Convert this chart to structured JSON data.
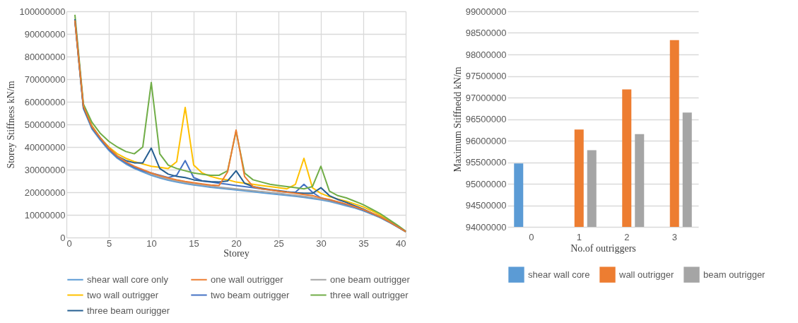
{
  "chart_data": [
    {
      "type": "line",
      "xlabel": "Storey",
      "ylabel": "Storey Stiffness kN/m",
      "x": [
        1,
        2,
        3,
        4,
        5,
        6,
        7,
        8,
        9,
        10,
        11,
        12,
        13,
        14,
        15,
        16,
        17,
        18,
        19,
        20,
        21,
        22,
        23,
        24,
        25,
        26,
        27,
        28,
        29,
        30,
        31,
        32,
        33,
        34,
        35,
        36,
        37,
        38,
        39,
        40
      ],
      "xlim": [
        0,
        40
      ],
      "xticks": [
        0,
        5,
        10,
        15,
        20,
        25,
        30,
        35,
        40
      ],
      "ylim": [
        0,
        100000000
      ],
      "yticks": [
        0,
        10000000,
        20000000,
        30000000,
        40000000,
        50000000,
        60000000,
        70000000,
        80000000,
        90000000,
        100000000
      ],
      "grid": true,
      "legend": "bottom",
      "series": [
        {
          "name": "shear wall core only",
          "color": "#5b9bd5",
          "values": [
            95500000,
            57000000,
            48000000,
            43000000,
            38500000,
            35000000,
            32500000,
            30500000,
            29000000,
            27500000,
            26300000,
            25300000,
            24500000,
            23800000,
            23200000,
            22700000,
            22200000,
            21800000,
            21400000,
            21000000,
            20600000,
            20200000,
            19800000,
            19400000,
            19000000,
            18600000,
            18200000,
            17700000,
            17200000,
            16600000,
            15900000,
            15000000,
            14000000,
            13000000,
            11800000,
            10300000,
            8700000,
            6800000,
            4700000,
            2500000
          ]
        },
        {
          "name": "one wall outrigger",
          "color": "#ed7d31",
          "values": [
            96000000,
            58000000,
            49000000,
            44000000,
            39500000,
            36000000,
            33500000,
            31500000,
            30000000,
            28500000,
            27300000,
            26300000,
            25500000,
            24800000,
            24200000,
            23700000,
            23200000,
            23000000,
            29000000,
            47500000,
            27000000,
            22500000,
            21500000,
            21000000,
            20500000,
            20000000,
            19500000,
            19000000,
            18500000,
            17500000,
            16800000,
            15800000,
            14800000,
            13600000,
            12300000,
            10800000,
            9100000,
            7100000,
            4900000,
            2600000
          ]
        },
        {
          "name": "one beam outrigger",
          "color": "#a5a5a5",
          "values": [
            96000000,
            57500000,
            48500000,
            43500000,
            39000000,
            35500000,
            33000000,
            31000000,
            29500000,
            28000000,
            26800000,
            25800000,
            25000000,
            24300000,
            23700000,
            23200000,
            22700000,
            22300000,
            21900000,
            21500000,
            21100000,
            20700000,
            20300000,
            19900000,
            19500000,
            19100000,
            18700000,
            18200000,
            17700000,
            17000000,
            16300000,
            15400000,
            14400000,
            13300000,
            12000000,
            10500000,
            8900000,
            7000000,
            4800000,
            2600000
          ]
        },
        {
          "name": "two wall outrigger",
          "color": "#ffc000",
          "values": [
            96000000,
            58500000,
            49500000,
            44000000,
            40000000,
            37000000,
            35000000,
            33500000,
            32500000,
            31500000,
            31000000,
            30500000,
            33500000,
            57500000,
            32000000,
            28500000,
            27000000,
            26000000,
            25500000,
            24500000,
            24000000,
            23500000,
            23000000,
            22500000,
            22000000,
            21500000,
            23500000,
            35000000,
            22000000,
            19500000,
            18000000,
            17000000,
            16000000,
            14800000,
            13500000,
            11800000,
            9800000,
            7500000,
            5000000,
            2500000
          ]
        },
        {
          "name": "two beam outrigger",
          "color": "#4472c4",
          "values": [
            96000000,
            57500000,
            48500000,
            43500000,
            39000000,
            35500000,
            33000000,
            31000000,
            29500000,
            28500000,
            27500000,
            26500000,
            27500000,
            34000000,
            26500000,
            25000000,
            24500000,
            24000000,
            23500000,
            23000000,
            22500000,
            22000000,
            21500000,
            21000000,
            20500000,
            20000000,
            20000000,
            23500000,
            20000000,
            17500000,
            16600000,
            15600000,
            14600000,
            13400000,
            12100000,
            10600000,
            9000000,
            7000000,
            4800000,
            2600000
          ]
        },
        {
          "name": "three wall outrigger",
          "color": "#70ad47",
          "values": [
            98500000,
            59000000,
            51000000,
            46000000,
            42500000,
            40000000,
            38000000,
            37000000,
            40000000,
            68500000,
            37000000,
            32000000,
            30500000,
            29500000,
            28500000,
            28000000,
            27500000,
            27500000,
            29500000,
            47000000,
            28500000,
            25500000,
            24500000,
            23500000,
            23000000,
            22500000,
            22000000,
            21500000,
            22500000,
            31500000,
            20500000,
            18500000,
            17500000,
            16000000,
            14500000,
            12500000,
            10500000,
            8000000,
            5500000,
            2800000
          ]
        },
        {
          "name": "three beam ourigger",
          "color": "#255e91",
          "values": [
            96500000,
            57500000,
            49000000,
            44000000,
            39500000,
            36000000,
            34000000,
            33000000,
            33000000,
            39500000,
            30500000,
            28000000,
            27000000,
            26500000,
            25500000,
            25000000,
            24700000,
            24500000,
            25000000,
            29500000,
            24000000,
            22500000,
            21800000,
            21200000,
            20700000,
            20200000,
            19800000,
            19500000,
            19500000,
            22000000,
            18500000,
            16800000,
            15500000,
            14000000,
            12500000,
            10800000,
            9100000,
            7100000,
            4900000,
            2600000
          ]
        }
      ]
    },
    {
      "type": "bar",
      "xlabel": "No.of outriggers",
      "ylabel": "Maximum  Stiffnedd kN/m",
      "categories": [
        "0",
        "1",
        "2",
        "3"
      ],
      "ylim": [
        94000000,
        99000000
      ],
      "yticks": [
        94000000,
        94500000,
        95000000,
        95500000,
        96000000,
        96500000,
        97000000,
        97500000,
        98000000,
        98500000,
        99000000
      ],
      "grid": "y",
      "legend": "bottom",
      "series": [
        {
          "name": "shear wall core",
          "color": "#5b9bd5",
          "values": [
            95470000,
            null,
            null,
            null
          ]
        },
        {
          "name": "wall outrigger",
          "color": "#ed7d31",
          "values": [
            null,
            96260000,
            97190000,
            98330000
          ]
        },
        {
          "name": "beam outrigger",
          "color": "#a5a5a5",
          "values": [
            null,
            95780000,
            96150000,
            96650000
          ]
        }
      ]
    }
  ]
}
